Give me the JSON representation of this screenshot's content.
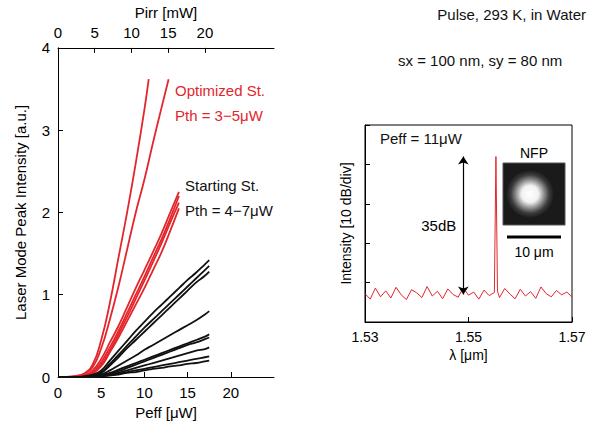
{
  "chart_data": [
    {
      "type": "line",
      "x_label": "Peff [μW]",
      "x2_label": "Pirr [mW]",
      "y_label": "Laser Mode Peak Intensity [a.u.]",
      "xlim": [
        0,
        25
      ],
      "xticks": [
        0,
        5,
        10,
        15,
        20
      ],
      "x2lim": [
        0,
        29.4
      ],
      "x2ticks": [
        0,
        5,
        10,
        15,
        20
      ],
      "ylim": [
        0,
        4
      ],
      "yticks": [
        0,
        1,
        2,
        3,
        4
      ],
      "grid": false,
      "annotations": [
        {
          "text": "Optimized St.",
          "color": "#e3262c"
        },
        {
          "text": "Pth = 3−5μW",
          "color": "#e3262c"
        },
        {
          "text": "Starting St.",
          "color": "#111111"
        },
        {
          "text": "Pth = 4−7μW",
          "color": "#111111"
        },
        {
          "text": "Pulse, 293 K, in Water",
          "color": "#111111"
        },
        {
          "text": "sx = 100 nm, sy = 80 nm",
          "color": "#111111"
        }
      ],
      "series": [
        {
          "color": "#e3262c",
          "x": [
            0,
            1,
            2,
            3,
            4,
            5,
            6,
            7,
            8,
            9,
            10,
            10.5
          ],
          "values": [
            0,
            0,
            0.01,
            0.04,
            0.15,
            0.45,
            0.9,
            1.45,
            2.0,
            2.6,
            3.25,
            3.62
          ]
        },
        {
          "color": "#e3262c",
          "x": [
            0,
            1,
            2,
            3,
            4,
            5,
            6,
            7,
            8,
            9,
            10,
            11,
            12,
            12.8
          ],
          "values": [
            0,
            0,
            0.01,
            0.04,
            0.12,
            0.35,
            0.7,
            1.1,
            1.55,
            2.0,
            2.4,
            2.85,
            3.28,
            3.62
          ]
        },
        {
          "color": "#e3262c",
          "x": [
            0,
            2,
            3,
            4,
            5,
            6,
            7,
            8,
            9,
            10,
            11,
            12,
            13,
            14
          ],
          "values": [
            0,
            0,
            0.02,
            0.08,
            0.22,
            0.42,
            0.62,
            0.85,
            1.08,
            1.3,
            1.52,
            1.75,
            2.0,
            2.25
          ]
        },
        {
          "color": "#e3262c",
          "x": [
            0,
            2,
            3,
            4,
            5,
            6,
            7,
            8,
            9,
            10,
            11,
            12,
            13,
            14
          ],
          "values": [
            0,
            0,
            0.01,
            0.06,
            0.18,
            0.36,
            0.56,
            0.78,
            1.0,
            1.22,
            1.45,
            1.68,
            1.93,
            2.2
          ]
        },
        {
          "color": "#e3262c",
          "x": [
            0,
            2,
            3,
            4,
            5,
            6,
            7,
            8,
            9,
            10,
            11,
            12,
            13,
            14
          ],
          "values": [
            0,
            0,
            0.01,
            0.05,
            0.15,
            0.32,
            0.52,
            0.73,
            0.95,
            1.17,
            1.4,
            1.63,
            1.88,
            2.12
          ]
        },
        {
          "color": "#e3262c",
          "x": [
            0,
            2,
            3,
            4,
            5,
            6,
            7,
            8,
            9,
            10,
            11,
            12,
            13,
            14
          ],
          "values": [
            0,
            0,
            0.01,
            0.04,
            0.13,
            0.3,
            0.48,
            0.68,
            0.88,
            1.08,
            1.3,
            1.52,
            1.78,
            2.05
          ]
        },
        {
          "color": "#111111",
          "x": [
            0,
            2,
            3,
            4,
            5,
            6,
            7,
            8,
            9,
            10,
            11,
            12,
            13,
            14,
            15,
            16,
            17,
            17.5
          ],
          "values": [
            0,
            0,
            0.01,
            0.03,
            0.08,
            0.2,
            0.32,
            0.44,
            0.56,
            0.67,
            0.78,
            0.88,
            0.98,
            1.08,
            1.18,
            1.27,
            1.37,
            1.42
          ]
        },
        {
          "color": "#111111",
          "x": [
            0,
            2,
            3,
            4,
            5,
            6,
            7,
            8,
            9,
            10,
            11,
            12,
            13,
            14,
            15,
            16,
            17,
            17.5
          ],
          "values": [
            0,
            0,
            0,
            0.02,
            0.06,
            0.16,
            0.27,
            0.38,
            0.49,
            0.6,
            0.7,
            0.8,
            0.9,
            1.0,
            1.1,
            1.2,
            1.3,
            1.35
          ]
        },
        {
          "color": "#111111",
          "x": [
            0,
            2,
            3,
            4,
            5,
            6,
            7,
            8,
            9,
            10,
            11,
            12,
            13,
            14,
            15,
            16,
            17,
            17.5
          ],
          "values": [
            0,
            0,
            0,
            0.02,
            0.05,
            0.14,
            0.24,
            0.35,
            0.45,
            0.55,
            0.65,
            0.75,
            0.85,
            0.95,
            1.05,
            1.15,
            1.23,
            1.28
          ]
        },
        {
          "color": "#111111",
          "x": [
            0,
            2,
            3,
            4,
            5,
            6,
            7,
            8,
            9,
            10,
            11,
            12,
            13,
            14,
            15,
            16,
            17,
            17.5
          ],
          "values": [
            0,
            0,
            0,
            0.01,
            0.03,
            0.08,
            0.14,
            0.2,
            0.26,
            0.33,
            0.39,
            0.45,
            0.51,
            0.57,
            0.63,
            0.69,
            0.76,
            0.8
          ]
        },
        {
          "color": "#111111",
          "x": [
            0,
            2,
            3,
            4,
            5,
            6,
            7,
            8,
            9,
            10,
            11,
            12,
            13,
            14,
            15,
            16,
            17,
            17.5
          ],
          "values": [
            0,
            0,
            0,
            0.01,
            0.02,
            0.05,
            0.09,
            0.13,
            0.17,
            0.21,
            0.25,
            0.29,
            0.33,
            0.37,
            0.41,
            0.45,
            0.49,
            0.52
          ]
        },
        {
          "color": "#111111",
          "x": [
            0,
            2,
            3,
            4,
            5,
            6,
            7,
            8,
            9,
            10,
            11,
            12,
            13,
            14,
            15,
            16,
            17,
            17.5
          ],
          "values": [
            0,
            0,
            0,
            0,
            0.02,
            0.04,
            0.07,
            0.11,
            0.15,
            0.19,
            0.23,
            0.27,
            0.31,
            0.35,
            0.39,
            0.42,
            0.46,
            0.48
          ]
        },
        {
          "color": "#111111",
          "x": [
            0,
            2,
            3,
            4,
            5,
            6,
            7,
            8,
            9,
            10,
            11,
            12,
            13,
            14,
            15,
            16,
            17,
            17.5
          ],
          "values": [
            0,
            0,
            0,
            0,
            0.01,
            0.03,
            0.05,
            0.08,
            0.11,
            0.14,
            0.17,
            0.2,
            0.23,
            0.26,
            0.29,
            0.32,
            0.34,
            0.36
          ]
        },
        {
          "color": "#111111",
          "x": [
            0,
            2,
            3,
            4,
            5,
            6,
            7,
            8,
            9,
            10,
            11,
            12,
            13,
            14,
            15,
            16,
            17,
            17.5
          ],
          "values": [
            0,
            0,
            0,
            0,
            0.01,
            0.02,
            0.04,
            0.06,
            0.08,
            0.1,
            0.12,
            0.14,
            0.16,
            0.18,
            0.2,
            0.22,
            0.24,
            0.25
          ]
        },
        {
          "color": "#111111",
          "x": [
            0,
            2,
            3,
            4,
            5,
            6,
            7,
            8,
            9,
            10,
            11,
            12,
            13,
            14,
            15,
            16,
            17,
            17.5
          ],
          "values": [
            0,
            0,
            0,
            0,
            0.01,
            0.02,
            0.03,
            0.05,
            0.06,
            0.08,
            0.1,
            0.11,
            0.13,
            0.14,
            0.16,
            0.17,
            0.19,
            0.2
          ]
        }
      ]
    },
    {
      "type": "line",
      "x_label": "λ [μm]",
      "y_label": "Intensity [10 dB/div]",
      "xlim": [
        1.53,
        1.57
      ],
      "xticks": [
        1.53,
        1.55,
        1.57
      ],
      "ylim": [
        0,
        50
      ],
      "yticks": [
        0,
        10,
        20,
        30,
        40,
        50
      ],
      "tick_labels": "x",
      "grid": false,
      "annotations": [
        {
          "text": "Peff = 11μW",
          "color": "#111111"
        }
      ],
      "arrow": {
        "x": 1.549,
        "from": 7,
        "to": 42,
        "label": "35dB"
      },
      "image": {
        "label": "NFP",
        "scale_bar": "10 μm"
      },
      "series": [
        {
          "color": "#e3262c",
          "x": [
            1.53,
            1.531,
            1.532,
            1.533,
            1.534,
            1.535,
            1.536,
            1.537,
            1.538,
            1.539,
            1.54,
            1.541,
            1.542,
            1.543,
            1.544,
            1.545,
            1.546,
            1.547,
            1.548,
            1.549,
            1.55,
            1.551,
            1.552,
            1.553,
            1.554,
            1.555,
            1.5553,
            1.5556,
            1.556,
            1.557,
            1.558,
            1.559,
            1.56,
            1.561,
            1.562,
            1.563,
            1.564,
            1.565,
            1.566,
            1.567,
            1.568,
            1.569,
            1.57
          ],
          "values": [
            7.2,
            5.8,
            8.6,
            6.4,
            7.9,
            6.1,
            8.8,
            6.9,
            5.7,
            8.2,
            7.4,
            6.2,
            9.0,
            6.6,
            7.8,
            5.9,
            8.4,
            7.0,
            6.3,
            8.7,
            6.8,
            7.6,
            5.8,
            8.1,
            6.7,
            7.5,
            42,
            7.8,
            6.2,
            8.5,
            7.1,
            5.9,
            8.3,
            6.6,
            7.7,
            6.0,
            8.9,
            7.2,
            6.4,
            8.0,
            6.9,
            7.6,
            6.3
          ]
        }
      ]
    }
  ]
}
